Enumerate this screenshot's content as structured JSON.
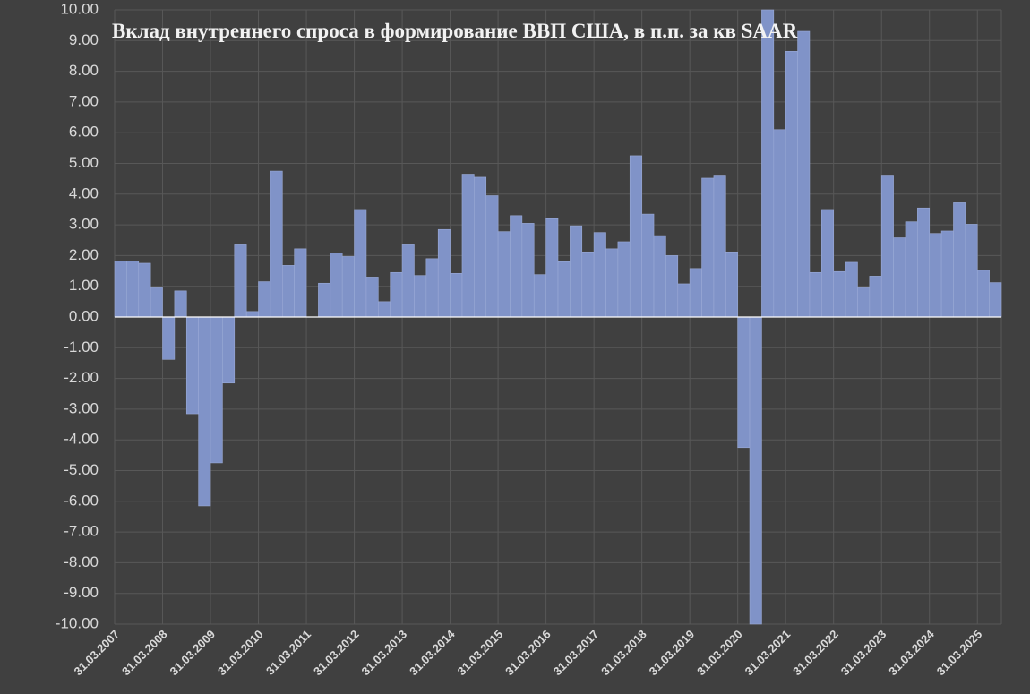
{
  "chart_data": {
    "type": "bar",
    "title": "Вклад внутреннего спроса в формирование ВВП США, в п.п. за кв SAAR",
    "categories": [
      "31.03.2007",
      null,
      null,
      null,
      "31.03.2008",
      null,
      null,
      null,
      "31.03.2009",
      null,
      null,
      null,
      "31.03.2010",
      null,
      null,
      null,
      "31.03.2011",
      null,
      null,
      null,
      "31.03.2012",
      null,
      null,
      null,
      "31.03.2013",
      null,
      null,
      null,
      "31.03.2014",
      null,
      null,
      null,
      "31.03.2015",
      null,
      null,
      null,
      "31.03.2016",
      null,
      null,
      null,
      "31.03.2017",
      null,
      null,
      null,
      "31.03.2018",
      null,
      null,
      null,
      "31.03.2019",
      null,
      null,
      null,
      "31.03.2020",
      null,
      null,
      null,
      "31.03.2021",
      null,
      null,
      null,
      "31.03.2022",
      null,
      null,
      null,
      "31.03.2023",
      null,
      null,
      null,
      "31.03.2024",
      null,
      null,
      null,
      "31.03.2025",
      null
    ],
    "values": [
      1.82,
      1.82,
      1.75,
      0.95,
      -1.38,
      0.85,
      -3.15,
      -6.15,
      -4.75,
      -2.15,
      2.35,
      0.18,
      1.15,
      4.75,
      1.68,
      2.22,
      0.0,
      1.1,
      2.08,
      1.97,
      3.5,
      1.3,
      0.5,
      1.45,
      2.35,
      1.35,
      1.9,
      2.85,
      1.42,
      4.65,
      4.55,
      3.95,
      2.78,
      3.3,
      3.05,
      1.38,
      3.2,
      1.8,
      2.97,
      2.12,
      2.75,
      2.22,
      2.45,
      5.25,
      3.35,
      2.65,
      2.0,
      1.08,
      1.58,
      4.52,
      4.62,
      2.12,
      -4.25,
      -10.0,
      10.0,
      6.1,
      8.65,
      9.3,
      1.45,
      3.5,
      1.48,
      1.78,
      0.95,
      1.33,
      4.62,
      2.58,
      3.1,
      3.55,
      2.72,
      2.8,
      3.72,
      3.02,
      1.52,
      1.12
    ],
    "color": "#8093c8",
    "ylim": [
      -10,
      10
    ],
    "yticks": [
      {
        "value": -10,
        "label": "-10.00"
      },
      {
        "value": -9,
        "label": "-9.00"
      },
      {
        "value": -8,
        "label": "-8.00"
      },
      {
        "value": -7,
        "label": "-7.00"
      },
      {
        "value": -6,
        "label": "-6.00"
      },
      {
        "value": -5,
        "label": "-5.00"
      },
      {
        "value": -4,
        "label": "-4.00"
      },
      {
        "value": -3,
        "label": "-3.00"
      },
      {
        "value": -2,
        "label": "-2.00"
      },
      {
        "value": -1,
        "label": "-1.00"
      },
      {
        "value": 0,
        "label": "0.00"
      },
      {
        "value": 1,
        "label": "1.00"
      },
      {
        "value": 2,
        "label": "2.00"
      },
      {
        "value": 3,
        "label": "3.00"
      },
      {
        "value": 4,
        "label": "4.00"
      },
      {
        "value": 5,
        "label": "5.00"
      },
      {
        "value": 6,
        "label": "6.00"
      },
      {
        "value": 7,
        "label": "7.00"
      },
      {
        "value": 8,
        "label": "8.00"
      },
      {
        "value": 9,
        "label": "9.00"
      },
      {
        "value": 10,
        "label": "10.00"
      }
    ],
    "grid": true
  }
}
